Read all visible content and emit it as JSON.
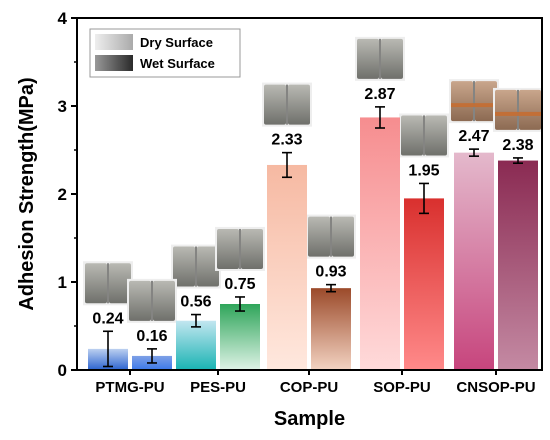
{
  "chart_data": {
    "type": "bar",
    "xlabel": "Sample",
    "ylabel": "Adhesion Strength(MPa)",
    "ylim": [
      0,
      4
    ],
    "yticks": [
      0,
      1,
      2,
      3,
      4
    ],
    "categories": [
      "PTMG-PU",
      "PES-PU",
      "COP-PU",
      "SOP-PU",
      "CNSOP-PU"
    ],
    "series": [
      {
        "name": "Dry Surface",
        "values": [
          0.24,
          0.56,
          2.33,
          2.87,
          2.47
        ],
        "errors": [
          0.2,
          0.07,
          0.14,
          0.12,
          0.04
        ],
        "value_labels": [
          "0.24",
          "0.56",
          "2.33",
          "2.87",
          "2.47"
        ],
        "top_colors": [
          "#bcd0f0",
          "#c2e6f0",
          "#f6b9a2",
          "#f68d8f",
          "#e4b9cc"
        ],
        "bottom_colors": [
          "#2b63d0",
          "#19b3b3",
          "#ffe8de",
          "#ffdada",
          "#c7457d"
        ]
      },
      {
        "name": "Wet Surface",
        "values": [
          0.16,
          0.75,
          0.93,
          1.95,
          2.38
        ],
        "errors": [
          0.08,
          0.08,
          0.04,
          0.17,
          0.03
        ],
        "value_labels": [
          "0.16",
          "0.75",
          "0.93",
          "1.95",
          "2.38"
        ],
        "top_colors": [
          "#7fa0e6",
          "#2fa55a",
          "#9b4a2a",
          "#d9302e",
          "#8a2a52"
        ],
        "bottom_colors": [
          "#3b78ea",
          "#dff3e7",
          "#f3d3c2",
          "#ff8a8a",
          "#c48aa3"
        ]
      }
    ],
    "legend": {
      "placement": "top-left",
      "entries": [
        "Dry Surface",
        "Wet Surface"
      ],
      "swatch_colors": [
        [
          "#eeeeee",
          "#aaaaaa"
        ],
        [
          "#999999",
          "#2a2a2a"
        ]
      ]
    }
  }
}
